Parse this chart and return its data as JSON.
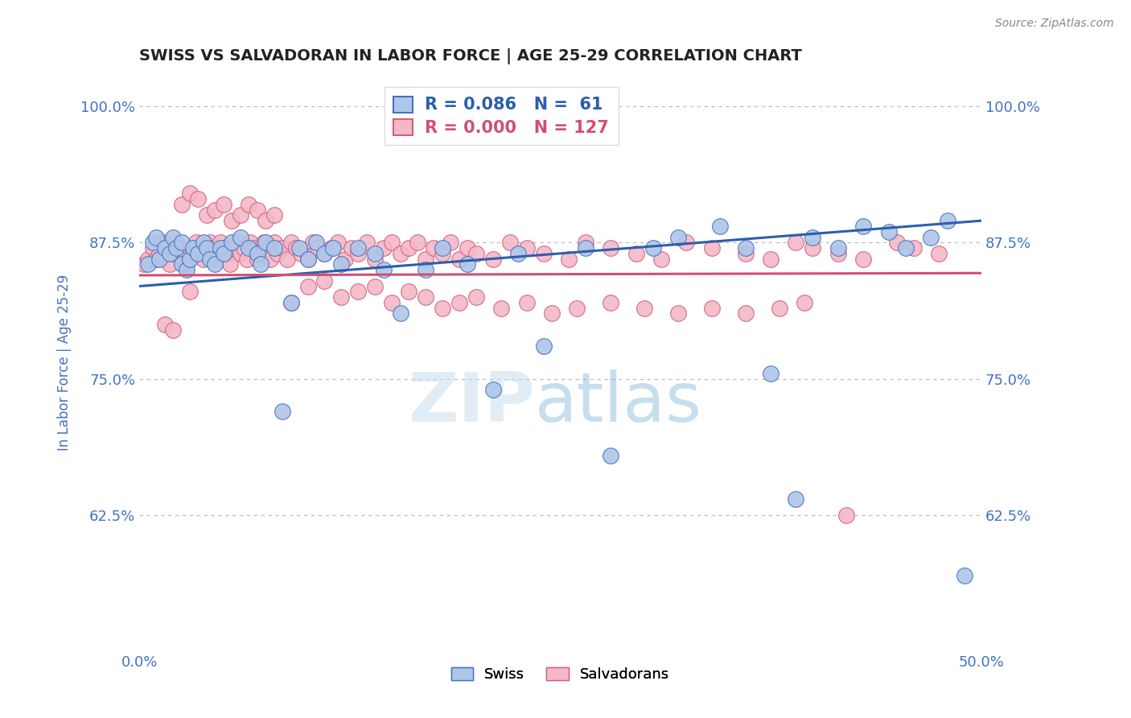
{
  "title": "SWISS VS SALVADORAN IN LABOR FORCE | AGE 25-29 CORRELATION CHART",
  "source_text": "Source: ZipAtlas.com",
  "ylabel": "In Labor Force | Age 25-29",
  "xlim": [
    0.0,
    0.5
  ],
  "ylim": [
    0.5,
    1.03
  ],
  "yticks": [
    0.625,
    0.75,
    0.875,
    1.0
  ],
  "ytick_labels": [
    "62.5%",
    "75.0%",
    "87.5%",
    "100.0%"
  ],
  "xticks": [
    0.0,
    0.5
  ],
  "xtick_labels": [
    "0.0%",
    "50.0%"
  ],
  "legend_r_swiss": "0.086",
  "legend_n_swiss": "61",
  "legend_r_salv": "0.000",
  "legend_n_salv": "127",
  "swiss_color": "#aec6e8",
  "swiss_edge_color": "#4472c4",
  "salv_color": "#f4b8c8",
  "salv_edge_color": "#d0607a",
  "trend_swiss_color": "#2b5fad",
  "trend_salv_color": "#d05070",
  "tick_color": "#4472c4",
  "grid_color": "#b8b8b8",
  "background_color": "#ffffff",
  "swiss_trend_x0": 0.0,
  "swiss_trend_y0": 0.835,
  "swiss_trend_x1": 0.5,
  "swiss_trend_y1": 0.895,
  "salv_trend_x0": 0.0,
  "salv_trend_y0": 0.845,
  "salv_trend_x1": 0.5,
  "salv_trend_y1": 0.847,
  "swiss_x": [
    0.005,
    0.008,
    0.01,
    0.012,
    0.015,
    0.018,
    0.02,
    0.022,
    0.025,
    0.025,
    0.028,
    0.03,
    0.032,
    0.035,
    0.038,
    0.04,
    0.042,
    0.045,
    0.048,
    0.05,
    0.055,
    0.06,
    0.065,
    0.07,
    0.072,
    0.075,
    0.08,
    0.085,
    0.09,
    0.095,
    0.1,
    0.105,
    0.11,
    0.115,
    0.12,
    0.13,
    0.14,
    0.145,
    0.155,
    0.17,
    0.18,
    0.195,
    0.21,
    0.225,
    0.24,
    0.265,
    0.28,
    0.305,
    0.32,
    0.345,
    0.36,
    0.375,
    0.39,
    0.4,
    0.415,
    0.43,
    0.445,
    0.455,
    0.47,
    0.48,
    0.49
  ],
  "swiss_y": [
    0.855,
    0.875,
    0.88,
    0.86,
    0.87,
    0.865,
    0.88,
    0.87,
    0.875,
    0.855,
    0.85,
    0.86,
    0.87,
    0.865,
    0.875,
    0.87,
    0.86,
    0.855,
    0.87,
    0.865,
    0.875,
    0.88,
    0.87,
    0.865,
    0.855,
    0.875,
    0.87,
    0.72,
    0.82,
    0.87,
    0.86,
    0.875,
    0.865,
    0.87,
    0.855,
    0.87,
    0.865,
    0.85,
    0.81,
    0.85,
    0.87,
    0.855,
    0.74,
    0.865,
    0.78,
    0.87,
    0.68,
    0.87,
    0.88,
    0.89,
    0.87,
    0.755,
    0.64,
    0.88,
    0.87,
    0.89,
    0.885,
    0.87,
    0.88,
    0.895,
    0.57
  ],
  "salv_x": [
    0.003,
    0.005,
    0.008,
    0.01,
    0.012,
    0.014,
    0.016,
    0.018,
    0.02,
    0.022,
    0.024,
    0.026,
    0.028,
    0.03,
    0.032,
    0.034,
    0.036,
    0.038,
    0.04,
    0.042,
    0.044,
    0.046,
    0.048,
    0.05,
    0.052,
    0.054,
    0.056,
    0.058,
    0.06,
    0.062,
    0.064,
    0.066,
    0.068,
    0.07,
    0.072,
    0.074,
    0.076,
    0.078,
    0.08,
    0.082,
    0.085,
    0.088,
    0.09,
    0.093,
    0.096,
    0.1,
    0.103,
    0.106,
    0.11,
    0.114,
    0.118,
    0.122,
    0.126,
    0.13,
    0.135,
    0.14,
    0.145,
    0.15,
    0.155,
    0.16,
    0.165,
    0.17,
    0.175,
    0.18,
    0.185,
    0.19,
    0.195,
    0.2,
    0.21,
    0.22,
    0.23,
    0.24,
    0.255,
    0.265,
    0.28,
    0.295,
    0.31,
    0.325,
    0.34,
    0.36,
    0.375,
    0.39,
    0.4,
    0.415,
    0.43,
    0.45,
    0.46,
    0.475,
    0.025,
    0.03,
    0.035,
    0.04,
    0.045,
    0.05,
    0.055,
    0.06,
    0.065,
    0.07,
    0.075,
    0.08,
    0.09,
    0.1,
    0.11,
    0.12,
    0.13,
    0.14,
    0.15,
    0.16,
    0.17,
    0.18,
    0.19,
    0.2,
    0.215,
    0.23,
    0.245,
    0.26,
    0.28,
    0.3,
    0.32,
    0.34,
    0.36,
    0.38,
    0.395,
    0.015,
    0.02,
    0.03,
    0.42
  ],
  "salv_y": [
    0.855,
    0.86,
    0.87,
    0.86,
    0.865,
    0.875,
    0.87,
    0.855,
    0.865,
    0.875,
    0.87,
    0.86,
    0.855,
    0.87,
    0.865,
    0.875,
    0.87,
    0.86,
    0.865,
    0.875,
    0.87,
    0.86,
    0.875,
    0.87,
    0.865,
    0.855,
    0.87,
    0.875,
    0.865,
    0.87,
    0.86,
    0.875,
    0.87,
    0.86,
    0.865,
    0.875,
    0.87,
    0.86,
    0.875,
    0.865,
    0.87,
    0.86,
    0.875,
    0.87,
    0.865,
    0.86,
    0.875,
    0.87,
    0.865,
    0.87,
    0.875,
    0.86,
    0.87,
    0.865,
    0.875,
    0.86,
    0.87,
    0.875,
    0.865,
    0.87,
    0.875,
    0.86,
    0.87,
    0.865,
    0.875,
    0.86,
    0.87,
    0.865,
    0.86,
    0.875,
    0.87,
    0.865,
    0.86,
    0.875,
    0.87,
    0.865,
    0.86,
    0.875,
    0.87,
    0.865,
    0.86,
    0.875,
    0.87,
    0.865,
    0.86,
    0.875,
    0.87,
    0.865,
    0.91,
    0.92,
    0.915,
    0.9,
    0.905,
    0.91,
    0.895,
    0.9,
    0.91,
    0.905,
    0.895,
    0.9,
    0.82,
    0.835,
    0.84,
    0.825,
    0.83,
    0.835,
    0.82,
    0.83,
    0.825,
    0.815,
    0.82,
    0.825,
    0.815,
    0.82,
    0.81,
    0.815,
    0.82,
    0.815,
    0.81,
    0.815,
    0.81,
    0.815,
    0.82,
    0.8,
    0.795,
    0.83,
    0.625
  ]
}
